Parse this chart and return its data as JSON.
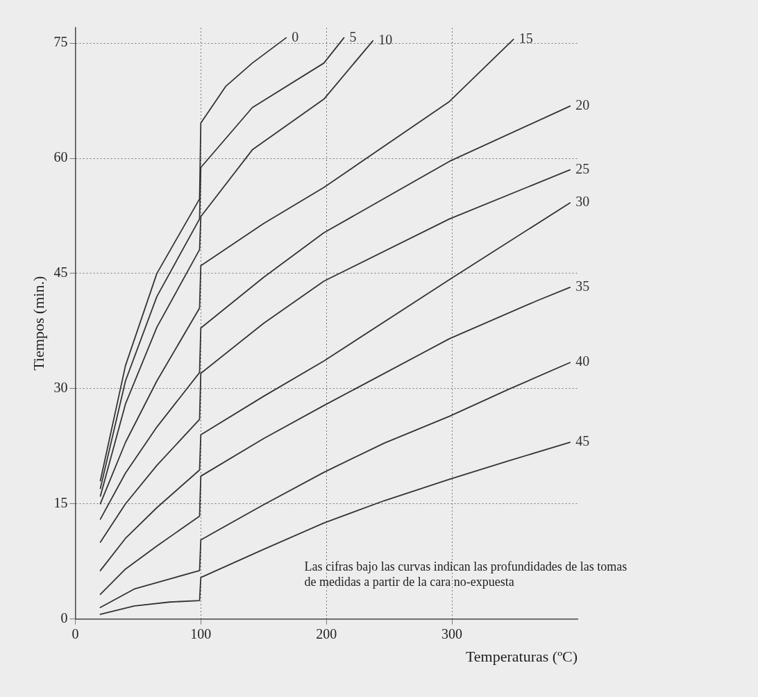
{
  "chart_data": {
    "type": "line",
    "xlabel": "Temperaturas (ºC)",
    "ylabel": "Tiempos (min.)",
    "xlim": [
      0,
      400
    ],
    "ylim": [
      0,
      77
    ],
    "xticks": [
      0,
      100,
      200,
      300
    ],
    "yticks": [
      0,
      15,
      30,
      45,
      60,
      75
    ],
    "grid": true,
    "legend": false,
    "marker": "none",
    "line_style": "solid",
    "annotations": [
      "Las cifras bajo las curvas indican las profundidades de las tomas de medidas a partir de la cara no-expuesta"
    ],
    "series": [
      {
        "name": "0",
        "color": "#333333",
        "x": [
          20,
          40,
          65,
          99,
          100,
          120,
          141,
          168
        ],
        "values": [
          18,
          33,
          45,
          54.7,
          64.6,
          69.4,
          72.4,
          75.7
        ]
      },
      {
        "name": "5",
        "color": "#333333",
        "x": [
          20,
          40,
          65,
          99,
          100,
          141,
          198,
          214
        ],
        "values": [
          17,
          31,
          42,
          52.1,
          58.8,
          66.6,
          72.4,
          75.7
        ]
      },
      {
        "name": "10",
        "color": "#333333",
        "x": [
          20,
          40,
          65,
          99,
          100,
          141,
          198,
          237
        ],
        "values": [
          16,
          28,
          38,
          48.1,
          52.4,
          61.1,
          67.7,
          75.3
        ]
      },
      {
        "name": "15",
        "color": "#333333",
        "x": [
          20,
          40,
          65,
          99,
          100,
          150,
          198,
          298,
          349
        ],
        "values": [
          15,
          23,
          31,
          40.5,
          46,
          51.5,
          56.2,
          67.4,
          75.5
        ]
      },
      {
        "name": "20",
        "color": "#333333",
        "x": [
          20,
          40,
          65,
          99,
          100,
          150,
          198,
          298,
          394
        ],
        "values": [
          13,
          19,
          25,
          32.1,
          37.9,
          44.5,
          50.3,
          59.6,
          66.8
        ]
      },
      {
        "name": "25",
        "color": "#333333",
        "x": [
          20,
          40,
          65,
          99,
          100,
          150,
          198,
          298,
          394
        ],
        "values": [
          10,
          15,
          20,
          26,
          32,
          38.5,
          44,
          52.1,
          58.5
        ]
      },
      {
        "name": "30",
        "color": "#333333",
        "x": [
          20,
          40,
          65,
          99,
          100,
          150,
          198,
          298,
          394
        ],
        "values": [
          6.3,
          10.5,
          14.5,
          19.4,
          24,
          29,
          33.6,
          44.2,
          54.2
        ]
      },
      {
        "name": "35",
        "color": "#333333",
        "x": [
          20,
          40,
          65,
          99,
          100,
          150,
          198,
          298,
          367,
          394
        ],
        "values": [
          3.2,
          6.5,
          9.5,
          13.4,
          18.6,
          23.5,
          27.8,
          36.5,
          41.4,
          43.2
        ]
      },
      {
        "name": "40",
        "color": "#333333",
        "x": [
          20,
          47,
          75,
          99,
          100,
          149,
          198,
          246,
          298,
          345,
          394
        ],
        "values": [
          1.5,
          3.9,
          5.2,
          6.3,
          10.3,
          14.8,
          19.1,
          22.9,
          26.4,
          29.9,
          33.4
        ]
      },
      {
        "name": "45",
        "color": "#333333",
        "x": [
          20,
          47,
          75,
          99,
          100,
          149,
          198,
          246,
          298,
          345,
          394
        ],
        "values": [
          0.6,
          1.7,
          2.2,
          2.4,
          5.4,
          9,
          12.5,
          15.4,
          18.2,
          20.6,
          23
        ]
      }
    ]
  }
}
